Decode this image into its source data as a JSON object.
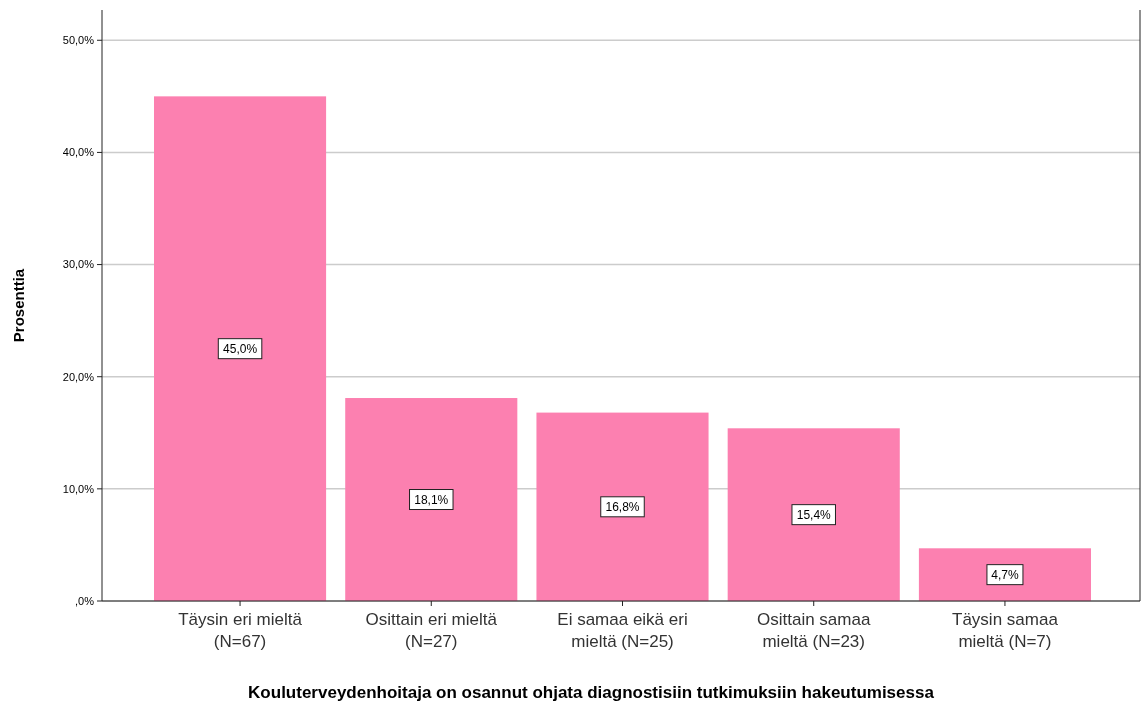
{
  "chart_data": {
    "type": "bar",
    "xlabel": "Kouluterveydenhoitaja on osannut ohjata diagnostisiin tutkimuksiin hakeutumisessa",
    "ylabel": "Prosenttia",
    "categories": [
      "Täysin eri mieltä\n(N=67)",
      "Osittain eri mieltä\n(N=27)",
      "Ei samaa eikä eri\nmieltä (N=25)",
      "Osittain samaa\nmieltä (N=23)",
      "Täysin samaa\nmieltä (N=7)"
    ],
    "values": [
      45.0,
      18.1,
      16.8,
      15.4,
      4.7
    ],
    "value_labels": [
      "45,0%",
      "18,1%",
      "16,8%",
      "15,4%",
      "4,7%"
    ],
    "color": "#fc80b0",
    "ylim": [
      0,
      52.7
    ],
    "yticks": [
      {
        "value": 0,
        "label": ",0%"
      },
      {
        "value": 10,
        "label": "10,0%"
      },
      {
        "value": 20,
        "label": "20,0%"
      },
      {
        "value": 30,
        "label": "30,0%"
      },
      {
        "value": 40,
        "label": "40,0%"
      },
      {
        "value": 50,
        "label": "50,0%"
      }
    ],
    "grid": "y"
  }
}
